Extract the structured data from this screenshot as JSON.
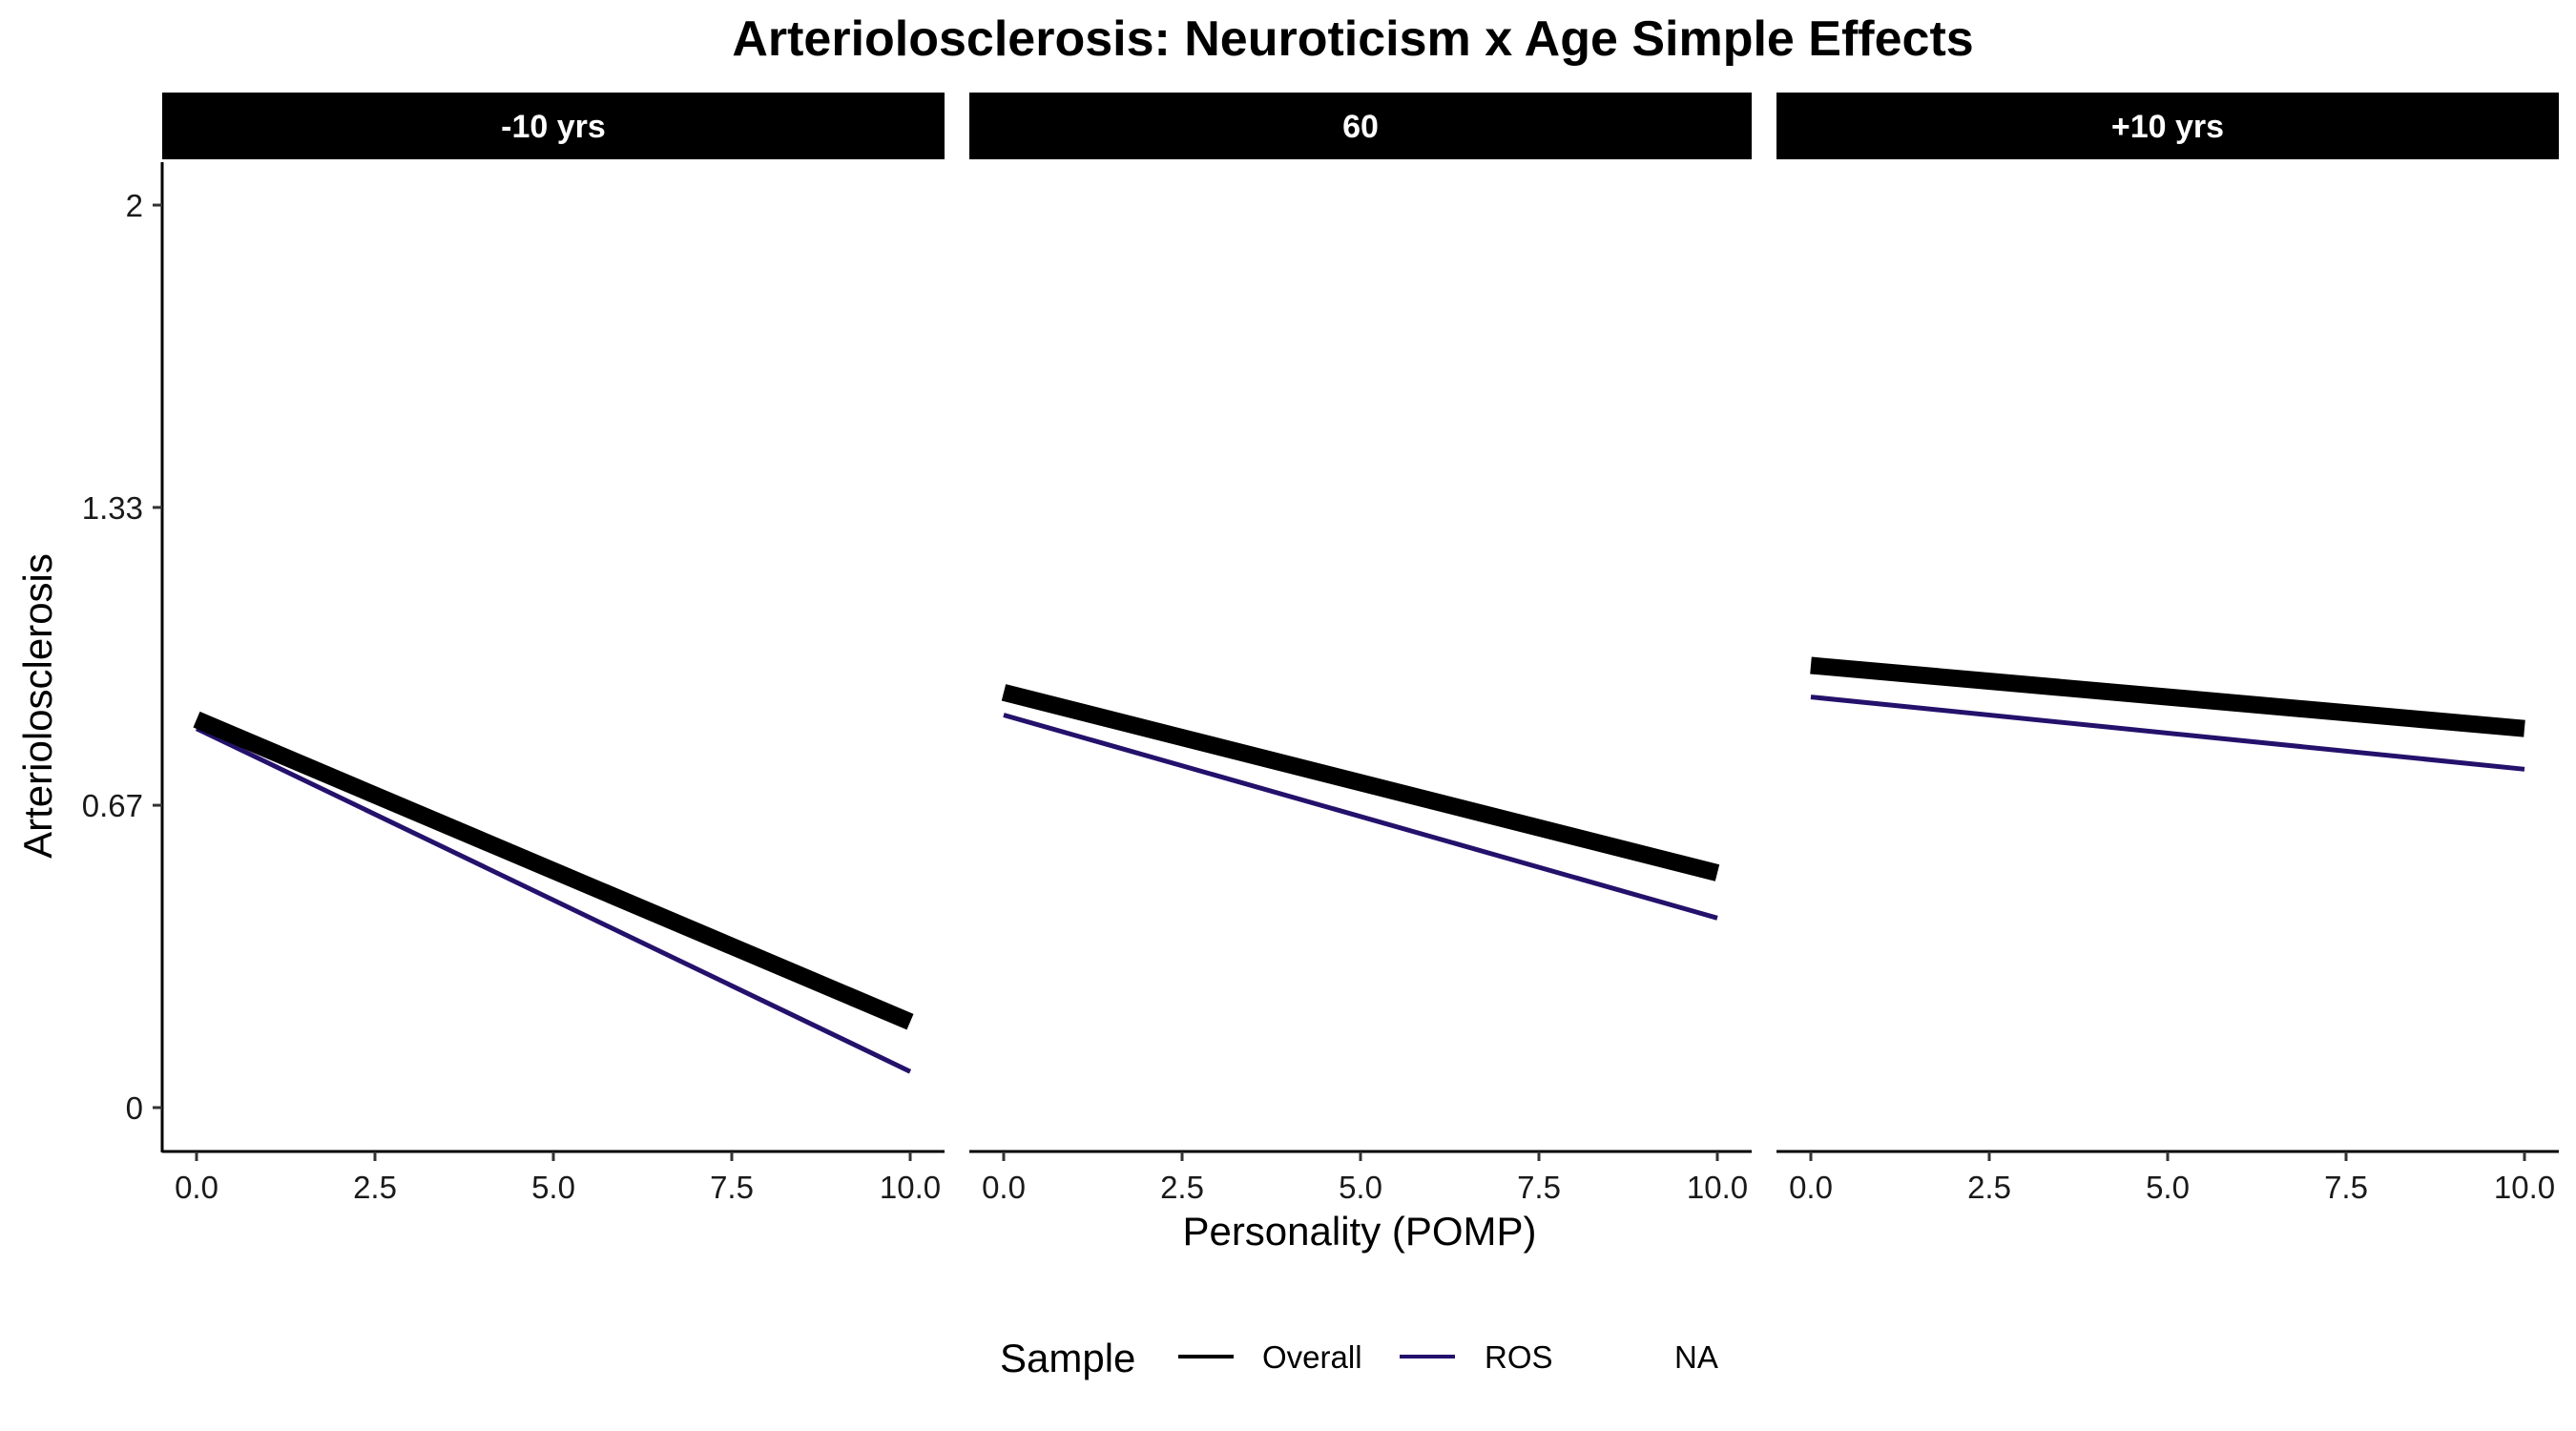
{
  "chart_data": {
    "type": "line",
    "title": "Arteriolosclerosis: Neuroticism x Age Simple Effects",
    "xlabel": "Personality (POMP)",
    "ylabel": "Arteriolosclerosis",
    "xlim": [
      0,
      10
    ],
    "ylim": [
      0,
      2
    ],
    "x_ticks": [
      "0.0",
      "2.5",
      "5.0",
      "7.5",
      "10.0"
    ],
    "x_tick_values": [
      0,
      2.5,
      5,
      7.5,
      10
    ],
    "y_ticks": [
      "0",
      "0.67",
      "1.33",
      "2"
    ],
    "y_tick_values": [
      0,
      0.67,
      1.33,
      2
    ],
    "grid": false,
    "legend": {
      "title": "Sample",
      "position": "bottom",
      "entries": [
        "Overall",
        "ROS",
        "NA"
      ]
    },
    "colors": {
      "Overall": "#000000",
      "ROS": "#24116b"
    },
    "panels": [
      {
        "label": "-10 yrs",
        "series": [
          {
            "name": "Overall",
            "x": [
              0,
              10
            ],
            "y": [
              0.86,
              0.19
            ]
          },
          {
            "name": "ROS",
            "x": [
              0,
              10
            ],
            "y": [
              0.84,
              0.08
            ]
          }
        ]
      },
      {
        "label": "60",
        "series": [
          {
            "name": "Overall",
            "x": [
              0,
              10
            ],
            "y": [
              0.92,
              0.52
            ]
          },
          {
            "name": "ROS",
            "x": [
              0,
              10
            ],
            "y": [
              0.87,
              0.42
            ]
          }
        ]
      },
      {
        "label": "+10 yrs",
        "series": [
          {
            "name": "Overall",
            "x": [
              0,
              10
            ],
            "y": [
              0.98,
              0.84
            ]
          },
          {
            "name": "ROS",
            "x": [
              0,
              10
            ],
            "y": [
              0.91,
              0.75
            ]
          }
        ]
      }
    ]
  }
}
